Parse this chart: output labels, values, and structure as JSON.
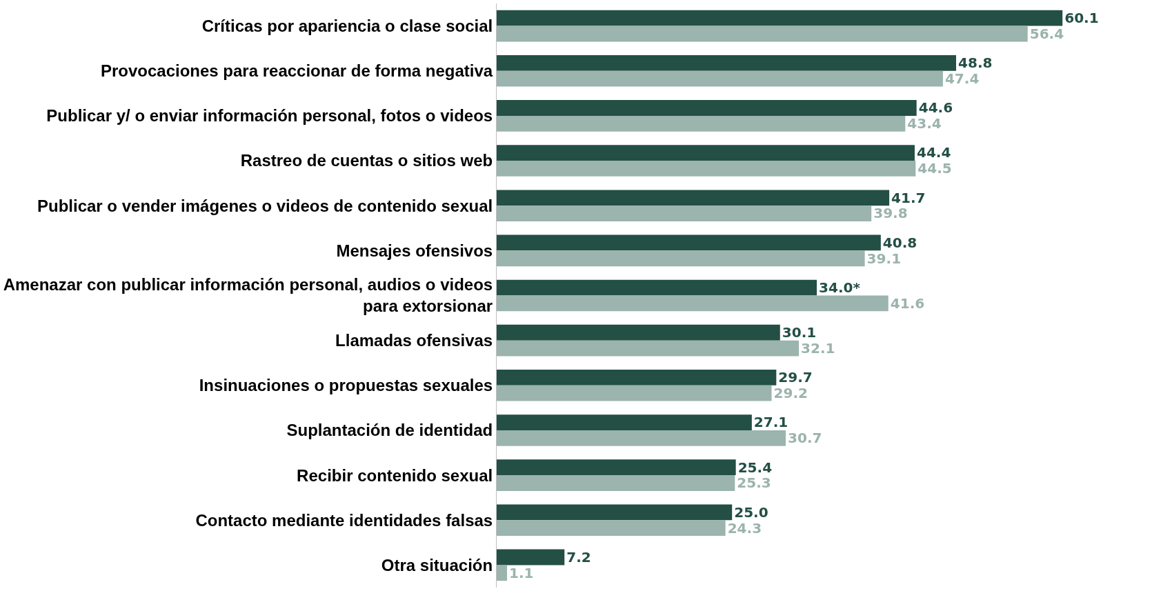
{
  "chart_data": {
    "type": "bar",
    "orientation": "horizontal",
    "categories": [
      "Críticas por apariencia o clase social",
      "Provocaciones para reaccionar de forma negativa",
      "Publicar y/ o enviar información personal, fotos o videos",
      "Rastreo de cuentas o sitios web",
      "Publicar o vender imágenes o videos de contenido sexual",
      "Mensajes ofensivos",
      "Amenazar con publicar información personal, audios o videos para extorsionar",
      "Llamadas ofensivas",
      "Insinuaciones o propuestas sexuales",
      "Suplantación de identidad",
      "Recibir contenido sexual",
      "Contacto mediante identidades falsas",
      "Otra situación"
    ],
    "series": [
      {
        "color": "#234f45",
        "values": [
          60.1,
          48.8,
          44.6,
          44.4,
          41.7,
          40.8,
          34.0,
          30.1,
          29.7,
          27.1,
          25.4,
          25.0,
          7.2
        ],
        "value_labels": [
          "60.1",
          "48.8",
          "44.6",
          "44.4",
          "41.7",
          "40.8",
          "34.0*",
          "30.1",
          "29.7",
          "27.1",
          "25.4",
          "25.0",
          "7.2"
        ]
      },
      {
        "color": "#9bb4ad",
        "values": [
          56.4,
          47.4,
          43.4,
          44.5,
          39.8,
          39.1,
          41.6,
          32.1,
          29.2,
          30.7,
          25.3,
          24.3,
          1.1
        ],
        "value_labels": [
          "56.4",
          "47.4",
          "43.4",
          "44.5",
          "39.8",
          "39.1",
          "41.6",
          "32.1",
          "29.2",
          "30.7",
          "25.3",
          "24.3",
          "1.1"
        ]
      }
    ]
  }
}
